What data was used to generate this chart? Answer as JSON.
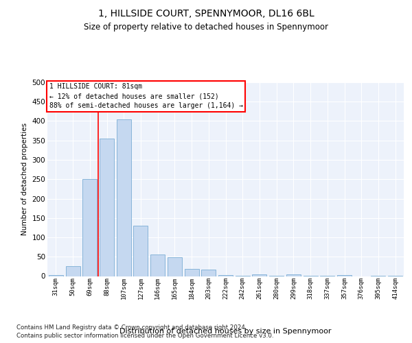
{
  "title": "1, HILLSIDE COURT, SPENNYMOOR, DL16 6BL",
  "subtitle": "Size of property relative to detached houses in Spennymoor",
  "xlabel": "Distribution of detached houses by size in Spennymoor",
  "ylabel": "Number of detached properties",
  "bar_color": "#c5d8f0",
  "bar_edge_color": "#7aadd4",
  "background_color": "#edf2fb",
  "grid_color": "#ffffff",
  "categories": [
    "31sqm",
    "50sqm",
    "69sqm",
    "88sqm",
    "107sqm",
    "127sqm",
    "146sqm",
    "165sqm",
    "184sqm",
    "203sqm",
    "222sqm",
    "242sqm",
    "261sqm",
    "280sqm",
    "299sqm",
    "318sqm",
    "337sqm",
    "357sqm",
    "376sqm",
    "395sqm",
    "414sqm"
  ],
  "values": [
    2,
    25,
    250,
    355,
    405,
    130,
    55,
    48,
    18,
    16,
    2,
    1,
    5,
    1,
    5,
    1,
    1,
    2,
    0,
    1,
    1
  ],
  "ylim": [
    0,
    500
  ],
  "yticks": [
    0,
    50,
    100,
    150,
    200,
    250,
    300,
    350,
    400,
    450,
    500
  ],
  "property_label": "1 HILLSIDE COURT: 81sqm",
  "annotation_line1": "← 12% of detached houses are smaller (152)",
  "annotation_line2": "88% of semi-detached houses are larger (1,164) →",
  "vline_bin_index": 3,
  "footer1": "Contains HM Land Registry data © Crown copyright and database right 2024.",
  "footer2": "Contains public sector information licensed under the Open Government Licence v3.0."
}
